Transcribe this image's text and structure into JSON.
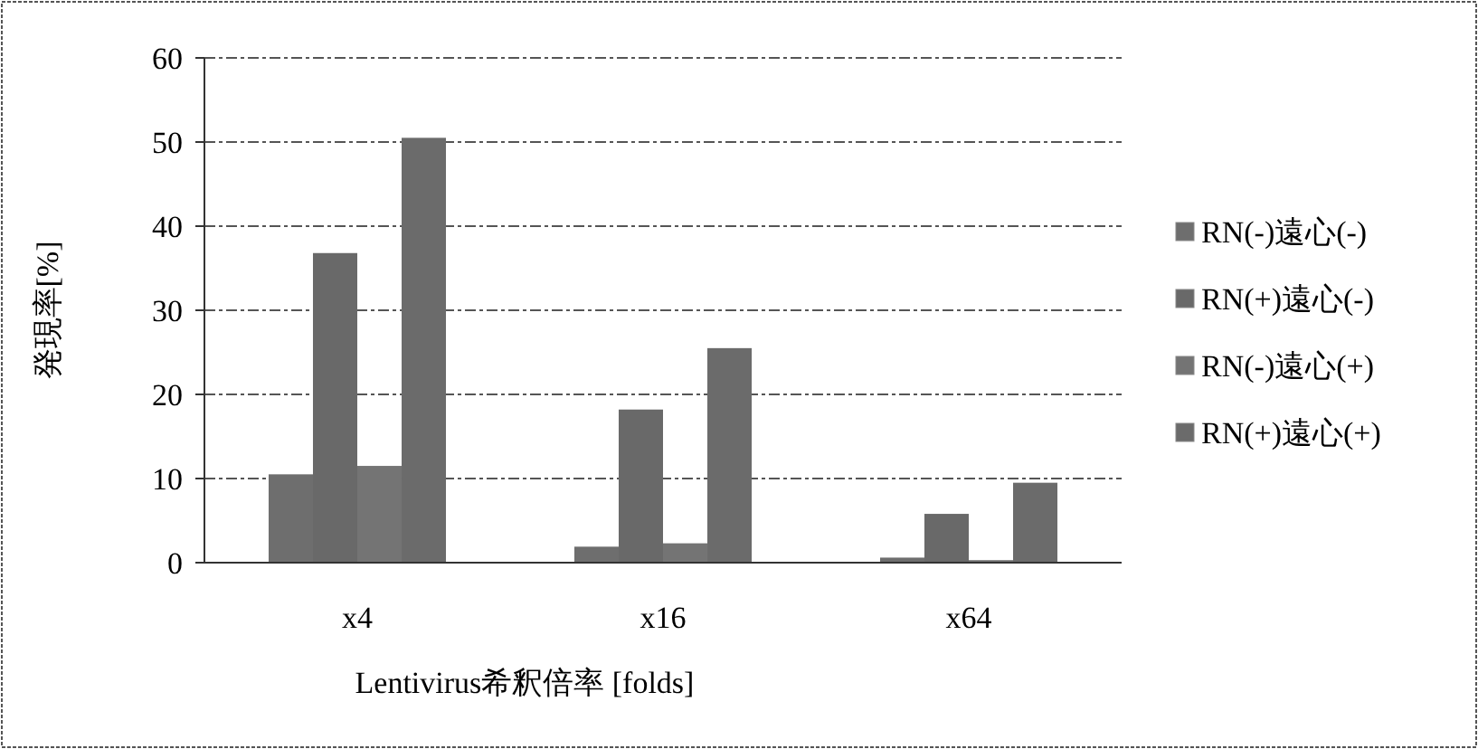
{
  "chart_data": {
    "type": "bar",
    "xlabel": "Lentivirus希釈倍率 [folds]",
    "ylabel": "発現率[%]",
    "categories": [
      "x4",
      "x16",
      "x64"
    ],
    "series": [
      {
        "name": "RN(-)遠心(-)",
        "color": "#6e6e6e",
        "values": [
          10.5,
          1.9,
          0.6
        ]
      },
      {
        "name": "RN(+)遠心(-)",
        "color": "#696969",
        "values": [
          36.8,
          18.2,
          5.8
        ]
      },
      {
        "name": "RN(-)遠心(+)",
        "color": "#747474",
        "values": [
          11.5,
          2.3,
          0.3
        ]
      },
      {
        "name": "RN(+)遠心(+)",
        "color": "#6b6b6b",
        "values": [
          50.5,
          25.5,
          9.5
        ]
      }
    ],
    "ylim": [
      0,
      60
    ],
    "yticks": [
      0,
      10,
      20,
      30,
      40,
      50,
      60
    ],
    "grid": "y",
    "legend": "right"
  }
}
